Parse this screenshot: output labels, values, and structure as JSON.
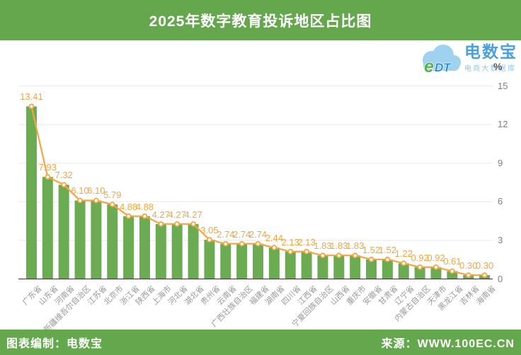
{
  "header": {
    "title": "2025年数字教育投诉地区占比图"
  },
  "logo": {
    "cloud_e": "e",
    "cloud_dt": "DT",
    "brand": "电数宝",
    "subtitle": "电商大数据库"
  },
  "footer": {
    "left": "图表编制：电数宝",
    "right": "来源：WWW.100EC.CN"
  },
  "colors": {
    "banner_green": "#64A74D",
    "bar_green": "#6BAB51",
    "line_orange": "#F4A542",
    "value_label_orange": "#F4A542",
    "y_axis_text": "#7F7F7F",
    "x_axis_text": "#999999",
    "grid_line": "#E8E8E8",
    "axis_line": "#333333",
    "brand_blue": "#4D9EDC",
    "brand_light_blue": "#8FC8EA",
    "cloud_blue": "#9ED2EE",
    "cloud_e_green": "#5CB14C",
    "title_text": "#FFFFFF"
  },
  "chart_data": {
    "type": "bar",
    "overlay": "line",
    "title": "2025年数字教育投诉地区占比图",
    "categories": [
      "广东省",
      "山东省",
      "河南省",
      "新疆维吾尔自治区",
      "江苏省",
      "北京市",
      "浙江省",
      "陕西省",
      "上海市",
      "河北省",
      "湖北省",
      "贵州省",
      "云南省",
      "广西壮族自治区",
      "福建省",
      "湖南省",
      "四川省",
      "江西省",
      "宁夏回族自治区",
      "山西省",
      "重庆市",
      "安徽省",
      "甘肃省",
      "辽宁省",
      "内蒙古自治区",
      "天津市",
      "黑龙江省",
      "吉林省",
      "海南省"
    ],
    "values": [
      13.41,
      7.93,
      7.32,
      6.1,
      6.1,
      5.79,
      4.88,
      4.88,
      4.27,
      4.27,
      4.27,
      3.05,
      2.74,
      2.74,
      2.74,
      2.44,
      2.13,
      2.13,
      1.83,
      1.83,
      1.83,
      1.52,
      1.52,
      1.22,
      0.92,
      0.92,
      0.61,
      0.3,
      0.3
    ],
    "value_label_decimals": 2,
    "xlabel": "",
    "ylabel": "%",
    "ylim": [
      0,
      15
    ],
    "yticks": [
      0,
      3,
      6,
      9,
      12,
      15
    ],
    "grid": true,
    "y_axis_position": "right",
    "legend": "none"
  }
}
